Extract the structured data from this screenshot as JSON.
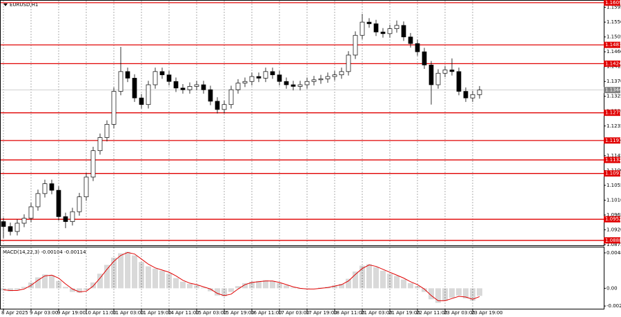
{
  "chart_data": {
    "type": "candlestick",
    "title": "EURUSD,H1",
    "categories": [
      "8 Apr 2025",
      null,
      null,
      null,
      "9 Apr 03:00",
      null,
      null,
      null,
      "9 Apr 19:00",
      null,
      null,
      null,
      "10 Apr 11:00",
      null,
      null,
      null,
      "11 Apr 03:00",
      null,
      null,
      null,
      "11 Apr 19:00",
      null,
      null,
      null,
      "14 Apr 11:00",
      null,
      null,
      null,
      "15 Apr 03:00",
      null,
      null,
      null,
      "15 Apr 19:00",
      null,
      null,
      null,
      "16 Apr 11:00",
      null,
      null,
      null,
      "17 Apr 03:00",
      null,
      null,
      null,
      "17 Apr 19:00",
      null,
      null,
      null,
      "18 Apr 11:00",
      null,
      null,
      null,
      "21 Apr 03:00",
      null,
      null,
      null,
      "21 Apr 19:00",
      null,
      null,
      null,
      "22 Apr 11:00",
      null,
      null,
      null,
      "23 Apr 03:00",
      null,
      null,
      null,
      "23 Apr 19:00",
      null
    ],
    "open": [
      1.0945,
      1.093,
      1.0915,
      1.094,
      1.0955,
      1.099,
      1.103,
      1.106,
      1.104,
      1.096,
      1.0945,
      1.0975,
      1.102,
      1.108,
      1.116,
      1.12,
      1.124,
      1.134,
      1.14,
      1.138,
      1.132,
      1.13,
      1.136,
      1.14,
      1.139,
      1.137,
      1.135,
      1.1345,
      1.1355,
      1.136,
      1.1345,
      1.131,
      1.1285,
      1.13,
      1.1345,
      1.1365,
      1.137,
      1.1385,
      1.138,
      1.14,
      1.139,
      1.137,
      1.136,
      1.1355,
      1.136,
      1.137,
      1.1375,
      1.1378,
      1.1385,
      1.139,
      1.14,
      1.145,
      1.151,
      1.155,
      1.1545,
      1.152,
      1.1515,
      1.153,
      1.154,
      1.1505,
      1.1485,
      1.146,
      1.142,
      1.136,
      1.1395,
      1.1405,
      1.14,
      1.134,
      1.132,
      1.133
    ],
    "high": [
      1.0957,
      1.0942,
      1.0952,
      1.0967,
      1.1002,
      1.1042,
      1.1072,
      1.1072,
      1.1052,
      1.0972,
      1.0987,
      1.1032,
      1.1092,
      1.1172,
      1.1212,
      1.1252,
      1.1352,
      1.1475,
      1.1412,
      1.1392,
      1.1332,
      1.1372,
      1.1412,
      1.1412,
      1.1402,
      1.1382,
      1.1362,
      1.1367,
      1.1372,
      1.1372,
      1.1357,
      1.1322,
      1.1312,
      1.1357,
      1.1377,
      1.1382,
      1.1397,
      1.1397,
      1.1412,
      1.1412,
      1.1402,
      1.1382,
      1.1372,
      1.1372,
      1.1382,
      1.1387,
      1.139,
      1.1397,
      1.1402,
      1.1412,
      1.1462,
      1.1522,
      1.1575,
      1.1562,
      1.1557,
      1.1532,
      1.1542,
      1.1555,
      1.1552,
      1.1517,
      1.1497,
      1.1472,
      1.1432,
      1.1407,
      1.1417,
      1.144,
      1.1412,
      1.1352,
      1.1342,
      1.1356
    ],
    "low": [
      1.0895,
      1.0903,
      1.0903,
      1.0928,
      1.0943,
      1.0978,
      1.1018,
      1.1028,
      1.0948,
      1.0925,
      1.0933,
      1.0963,
      1.1008,
      1.1068,
      1.1148,
      1.1188,
      1.1228,
      1.1328,
      1.1368,
      1.1308,
      1.1288,
      1.1288,
      1.1348,
      1.1378,
      1.1358,
      1.1338,
      1.1333,
      1.1333,
      1.1343,
      1.1333,
      1.1298,
      1.1273,
      1.1273,
      1.1288,
      1.1333,
      1.1353,
      1.1358,
      1.1368,
      1.1368,
      1.1378,
      1.1358,
      1.1348,
      1.1343,
      1.1343,
      1.1348,
      1.1358,
      1.1363,
      1.1366,
      1.1373,
      1.1378,
      1.1388,
      1.1438,
      1.1498,
      1.1533,
      1.1508,
      1.1503,
      1.1503,
      1.1518,
      1.1493,
      1.1473,
      1.1448,
      1.1408,
      1.13,
      1.1348,
      1.1383,
      1.1388,
      1.1328,
      1.1308,
      1.1308,
      1.1318
    ],
    "close": [
      1.093,
      1.0915,
      1.094,
      1.0955,
      1.099,
      1.103,
      1.106,
      1.104,
      1.096,
      1.0945,
      1.0975,
      1.102,
      1.108,
      1.116,
      1.12,
      1.124,
      1.134,
      1.14,
      1.138,
      1.132,
      1.13,
      1.136,
      1.14,
      1.139,
      1.137,
      1.135,
      1.1345,
      1.1355,
      1.136,
      1.1345,
      1.131,
      1.1285,
      1.13,
      1.1345,
      1.1365,
      1.137,
      1.1385,
      1.138,
      1.14,
      1.139,
      1.137,
      1.136,
      1.1355,
      1.136,
      1.137,
      1.1375,
      1.1378,
      1.1385,
      1.139,
      1.14,
      1.145,
      1.151,
      1.155,
      1.1545,
      1.152,
      1.1515,
      1.153,
      1.154,
      1.1505,
      1.1485,
      1.146,
      1.142,
      1.136,
      1.1395,
      1.1405,
      1.14,
      1.134,
      1.132,
      1.133,
      1.1344
    ],
    "ylim": [
      1.0873,
      1.1615
    ],
    "yticks": [
      {
        "value": 1.1595,
        "label": "1.1595"
      },
      {
        "value": 1.155,
        "label": "1.1550"
      },
      {
        "value": 1.1505,
        "label": "1.1505"
      },
      {
        "value": 1.146,
        "label": "1.1460"
      },
      {
        "value": 1.1415,
        "label": "1.1415"
      },
      {
        "value": 1.137,
        "label": "1.1370"
      },
      {
        "value": 1.1325,
        "label": "1.1325"
      },
      {
        "value": 1.128,
        "label": "1.1280"
      },
      {
        "value": 1.1235,
        "label": "1.1235"
      },
      {
        "value": 1.119,
        "label": "1.1190"
      },
      {
        "value": 1.1145,
        "label": "1.1145"
      },
      {
        "value": 1.11,
        "label": "1.1100"
      },
      {
        "value": 1.1055,
        "label": "1.1055"
      },
      {
        "value": 1.101,
        "label": "1.1010"
      },
      {
        "value": 1.0965,
        "label": "1.0965"
      },
      {
        "value": 1.092,
        "label": "1.0920"
      },
      {
        "value": 1.0875,
        "label": "1.0875"
      }
    ],
    "levels": [
      1.1609,
      1.1481,
      1.1424,
      1.1275,
      1.1191,
      1.1132,
      1.1091,
      1.0952,
      1.0888
    ],
    "level_color": "#e00000",
    "current_price": 1.1344,
    "grid": true,
    "macd": {
      "title": "MACD(14,22,3) -0.00104 -0.00114",
      "histogram": [
        -0.0003,
        -0.0004,
        -0.0002,
        0.0002,
        0.0008,
        0.0015,
        0.0019,
        0.0018,
        0.001,
        0.0002,
        -0.0005,
        -0.0006,
        -0.0002,
        0.0008,
        0.002,
        0.0032,
        0.0042,
        0.0048,
        0.005,
        0.0045,
        0.0036,
        0.003,
        0.0027,
        0.0024,
        0.002,
        0.0014,
        0.0009,
        0.0006,
        0.0004,
        0.0001,
        -0.0004,
        -0.001,
        -0.0011,
        -0.0005,
        0.0003,
        0.0007,
        0.0009,
        0.001,
        0.0011,
        0.001,
        0.0007,
        0.0004,
        0.0001,
        -0.0001,
        -0.0001,
        0.0,
        0.0001,
        0.0002,
        0.0004,
        0.0006,
        0.0013,
        0.0023,
        0.0031,
        0.0033,
        0.0029,
        0.0024,
        0.002,
        0.0017,
        0.0012,
        0.0007,
        0.0003,
        -0.0005,
        -0.0015,
        -0.002,
        -0.0017,
        -0.0013,
        -0.001,
        -0.0014,
        -0.0017,
        -0.00104
      ],
      "signal": [
        -0.0002,
        -0.0003,
        -0.0003,
        -0.0001,
        0.0004,
        0.0011,
        0.0017,
        0.0018,
        0.0014,
        0.0006,
        -0.0001,
        -0.0005,
        -0.0004,
        0.0003,
        0.0014,
        0.0026,
        0.0037,
        0.0045,
        0.0049,
        0.0047,
        0.004,
        0.0033,
        0.0028,
        0.0025,
        0.0022,
        0.0017,
        0.0011,
        0.0007,
        0.0005,
        0.0002,
        -0.0001,
        -0.0007,
        -0.001,
        -0.0008,
        -0.0001,
        0.0005,
        0.0008,
        0.0009,
        0.001,
        0.001,
        0.0008,
        0.0005,
        0.0002,
        0.0,
        -0.0001,
        -0.0001,
        0.0,
        0.0001,
        0.0003,
        0.0005,
        0.001,
        0.0019,
        0.0027,
        0.0032,
        0.003,
        0.0026,
        0.0022,
        0.0018,
        0.0014,
        0.0009,
        0.0005,
        -0.0001,
        -0.001,
        -0.0017,
        -0.0017,
        -0.0014,
        -0.0011,
        -0.0012,
        -0.0015,
        -0.00114
      ],
      "histogram_color": "#a0a0a0",
      "signal_color": "#e00000",
      "ylim": [
        -0.0028,
        0.0056
      ],
      "yticks": [
        0.00485,
        {
          "value": 0,
          "label": "0.00"
        },
        -0.00243
      ]
    }
  }
}
